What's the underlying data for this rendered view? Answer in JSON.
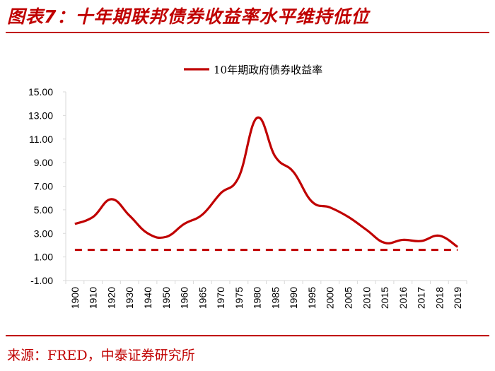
{
  "header": {
    "title": "图表7：十年期联邦债券收益率水平维持低位"
  },
  "footer": {
    "source": "来源：FRED，中泰证券研究所"
  },
  "colors": {
    "accent": "#c00000",
    "series": "#c00000",
    "axis": "#d9d9d9",
    "text": "#000000"
  },
  "chart_data": {
    "type": "line",
    "title": "",
    "xlabel": "",
    "ylabel": "",
    "categories": [
      "1900",
      "1910",
      "1920",
      "1930",
      "1940",
      "1950",
      "1960",
      "1965",
      "1970",
      "1975",
      "1980",
      "1985",
      "1990",
      "1995",
      "2000",
      "2005",
      "2010",
      "2015",
      "2016",
      "2017",
      "2018",
      "2019"
    ],
    "series": [
      {
        "name": "10年期政府债券收益率",
        "style": "solid",
        "values": [
          3.8,
          4.4,
          5.9,
          4.5,
          3.0,
          2.7,
          3.8,
          4.6,
          6.4,
          7.8,
          12.8,
          9.5,
          8.2,
          5.7,
          5.2,
          4.4,
          3.3,
          2.2,
          2.45,
          2.35,
          2.8,
          1.85
        ]
      }
    ],
    "reference_line": {
      "value": 1.6,
      "style": "dashed"
    },
    "ylim": [
      -1.0,
      15.0
    ],
    "yticks": [
      "-1.00",
      "1.00",
      "3.00",
      "5.00",
      "7.00",
      "9.00",
      "11.00",
      "13.00",
      "15.00"
    ],
    "legend": {
      "position": "top-center",
      "entries": [
        "10年期政府债券收益率"
      ]
    },
    "grid": false
  }
}
